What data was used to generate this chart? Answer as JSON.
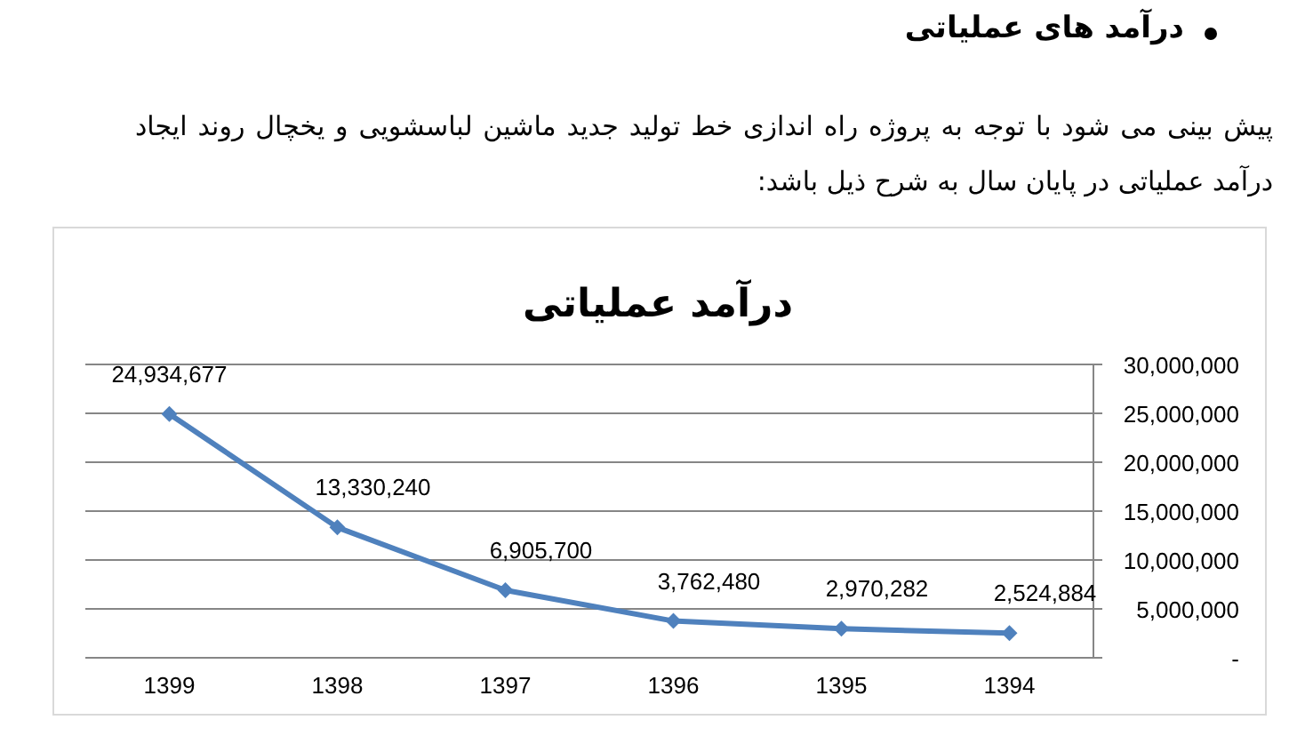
{
  "chart_data": {
    "type": "line",
    "title": "درآمد عملیاتی",
    "annotations": [
      "درآمد های عملیاتی",
      "پیش بینی می شود با توجه به پروژه راه اندازی خط تولید جدید ماشین لباسشویی و یخچال روند ایجاد درآمد عملیاتی در پایان سال به شرح ذیل باشد:"
    ],
    "categories": [
      "1399",
      "1398",
      "1397",
      "1396",
      "1395",
      "1394"
    ],
    "series": [
      {
        "color": "#4f81bd",
        "values": [
          24934677,
          13330240,
          6905700,
          3762480,
          2970282,
          2524884
        ],
        "value_labels": [
          "24,934,677",
          "13,330,240",
          "6,905,700",
          "3,762,480",
          "2,970,282",
          "2,524,884"
        ]
      }
    ],
    "ylim": [
      0,
      30000000
    ],
    "yticks": [
      {
        "value": 0,
        "label": "-"
      },
      {
        "value": 5000000,
        "label": "5,000,000"
      },
      {
        "value": 10000000,
        "label": "10,000,000"
      },
      {
        "value": 15000000,
        "label": "15,000,000"
      },
      {
        "value": 20000000,
        "label": "20,000,000"
      },
      {
        "value": 25000000,
        "label": "25,000,000"
      },
      {
        "value": 30000000,
        "label": "30,000,000"
      }
    ],
    "grid": "y",
    "marker": "diamond",
    "line_style": "solid"
  }
}
